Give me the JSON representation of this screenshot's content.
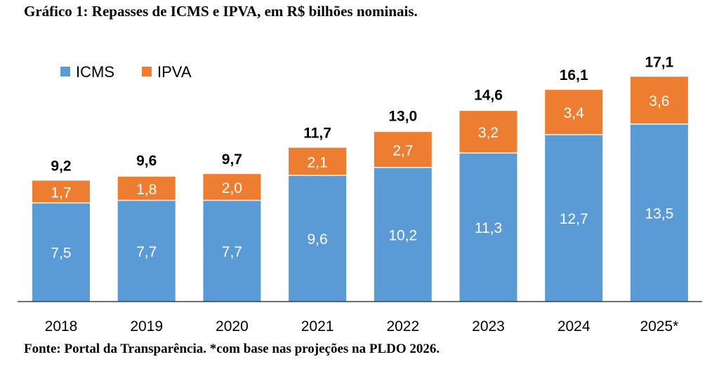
{
  "title": "Gráfico 1: Repasses de ICMS e IPVA, em R$ bilhões nominais.",
  "source": "Fonte: Portal da Transparência. *com base nas projeções na PLDO 2026.",
  "chart_data": {
    "type": "bar",
    "stacked": true,
    "categories": [
      "2018",
      "2019",
      "2020",
      "2021",
      "2022",
      "2023",
      "2024",
      "2025*"
    ],
    "series": [
      {
        "name": "ICMS",
        "color": "#5B9BD5",
        "values": [
          7.5,
          7.7,
          7.7,
          9.6,
          10.2,
          11.3,
          12.7,
          13.5
        ],
        "labels": [
          "7,5",
          "7,7",
          "7,7",
          "9,6",
          "10,2",
          "11,3",
          "12,7",
          "13,5"
        ]
      },
      {
        "name": "IPVA",
        "color": "#ED7D31",
        "values": [
          1.7,
          1.8,
          2.0,
          2.1,
          2.7,
          3.2,
          3.4,
          3.6
        ],
        "labels": [
          "1,7",
          "1,8",
          "2,0",
          "2,1",
          "2,7",
          "3,2",
          "3,4",
          "3,6"
        ]
      }
    ],
    "totals": [
      9.2,
      9.6,
      9.7,
      11.7,
      13.0,
      14.6,
      16.1,
      17.1
    ],
    "total_labels": [
      "9,2",
      "9,6",
      "9,7",
      "11,7",
      "13,0",
      "14,6",
      "16,1",
      "17,1"
    ],
    "legend_position": "top-left",
    "grid": false
  }
}
